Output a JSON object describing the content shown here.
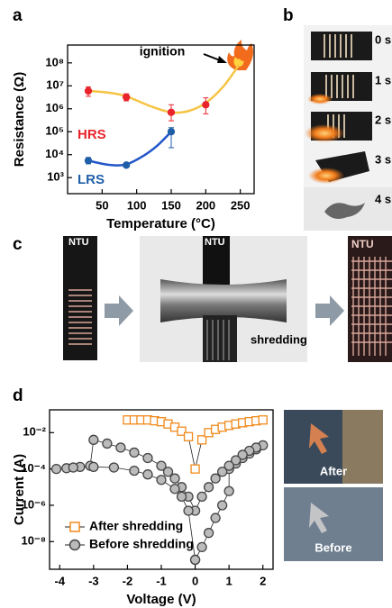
{
  "figure": {
    "panels": [
      "a",
      "b",
      "c",
      "d"
    ],
    "b_times": [
      "0 s",
      "1 s",
      "2 s",
      "3 s",
      "4 s"
    ],
    "c_labels": [
      "NTU",
      "NTU",
      "NTU"
    ],
    "c_caption": "shredding",
    "d_insets": [
      "After",
      "Before"
    ]
  },
  "chart_data": [
    {
      "type": "line",
      "log_y": true,
      "x_label": "Temperature (°C)",
      "y_label": "Resistance (Ω)",
      "annotation": "ignition",
      "xlim": [
        0,
        270
      ],
      "ylim": [
        200,
        600000000
      ],
      "xticks": [
        50,
        100,
        150,
        200,
        250
      ],
      "yticks": [
        {
          "value": 1000,
          "label": "10³"
        },
        {
          "value": 10000,
          "label": "10⁴"
        },
        {
          "value": 100000,
          "label": "10⁵"
        },
        {
          "value": 1000000,
          "label": "10⁶"
        },
        {
          "value": 10000000,
          "label": "10⁷"
        },
        {
          "value": 100000000,
          "label": "10⁸"
        }
      ],
      "series": [
        {
          "name": "HRS",
          "color": "#e8232a",
          "marker": "circle",
          "x": [
            30,
            85,
            150,
            200
          ],
          "values": [
            6000000,
            3200000,
            700000,
            1500000
          ],
          "err_low": [
            3500000,
            2200000,
            300000,
            600000
          ],
          "err_high": [
            9000000,
            4500000,
            1500000,
            3000000
          ],
          "fit": {
            "color": "#f6c445",
            "x": [
              30,
              60,
              85,
              120,
              150,
              175,
              200,
              225,
              248
            ],
            "values": [
              6000000,
              5000000,
              3500000,
              1300000,
              700000,
              800000,
              1800000,
              9000000,
              80000000
            ]
          }
        },
        {
          "name": "LRS",
          "color": "#1f5fa8",
          "marker": "circle",
          "x": [
            30,
            85,
            150
          ],
          "values": [
            5500,
            3500,
            100000
          ],
          "err_low": [
            4000,
            3000,
            20000
          ],
          "err_high": [
            7500,
            4200,
            150000
          ],
          "fit": {
            "color": "#2255c8",
            "x": [
              30,
              60,
              85,
              110,
              130,
              150
            ],
            "values": [
              5500,
              3600,
              3800,
              9000,
              25000,
              100000
            ]
          }
        }
      ]
    },
    {
      "type": "line",
      "log_y": true,
      "x_label": "Voltage (V)",
      "y_label": "Current (A)",
      "legend": "lower left",
      "xlim": [
        -4.3,
        2.3
      ],
      "ylim": [
        3e-10,
        0.18
      ],
      "xticks": [
        -4,
        -3,
        -2,
        -1,
        0,
        1,
        2
      ],
      "yticks": [
        {
          "value": 1e-08,
          "label": "10⁻⁸"
        },
        {
          "value": 1e-06,
          "label": "10⁻⁶"
        },
        {
          "value": 0.0001,
          "label": "10⁻⁴"
        },
        {
          "value": 0.01,
          "label": "10⁻²"
        }
      ],
      "series": [
        {
          "name": "After shredding",
          "color": "#f08a1c",
          "fill": "#ffffff",
          "marker": "square",
          "x": [
            -2,
            -1.8,
            -1.6,
            -1.4,
            -1.2,
            -1,
            -0.8,
            -0.6,
            -0.4,
            -0.2,
            0,
            0.2,
            0.4,
            0.6,
            0.8,
            1,
            1.2,
            1.4,
            1.6,
            1.8,
            2
          ],
          "values": [
            0.05,
            0.05,
            0.05,
            0.05,
            0.045,
            0.04,
            0.03,
            0.02,
            0.012,
            0.006,
            0.0001,
            0.004,
            0.01,
            0.015,
            0.02,
            0.025,
            0.03,
            0.035,
            0.04,
            0.045,
            0.05
          ]
        },
        {
          "name": "Before shredding",
          "color": "#444444",
          "fill": "#bbbbbb",
          "marker": "circle",
          "x": [
            0,
            0.2,
            0.4,
            0.6,
            0.8,
            1,
            1,
            1.2,
            1.4,
            1.6,
            1.8,
            2,
            1.8,
            1.6,
            1.4,
            1.2,
            1,
            0.8,
            0.6,
            0.4,
            0.2,
            0,
            -0.2,
            -0.4,
            -0.6,
            -0.8,
            -1,
            -1.4,
            -1.8,
            -2.2,
            -2.6,
            -3,
            -3.1,
            -3.4,
            -3.8,
            -4.1,
            -3.6,
            -3,
            -2.4,
            -1.8,
            -1.4,
            -1,
            -0.6,
            -0.4,
            -0.2,
            0
          ],
          "values": [
            1e-09,
            5e-09,
            3e-08,
            2e-07,
            1e-06,
            6e-06,
            0.0001,
            0.0002,
            0.0004,
            0.0007,
            0.0012,
            0.002,
            0.0015,
            0.001,
            0.0006,
            0.0003,
            0.00015,
            7e-05,
            3e-05,
            1e-05,
            3e-06,
            5e-07,
            3e-06,
            1e-05,
            3e-05,
            7e-05,
            0.00015,
            0.0004,
            0.0008,
            0.0015,
            0.0025,
            0.004,
            0.00015,
            0.00013,
            0.00011,
            0.0001,
            0.00012,
            0.00013,
            0.00012,
            8e-05,
            5e-05,
            2.5e-05,
            8e-06,
            3e-06,
            5e-07,
            1e-09
          ]
        }
      ]
    }
  ]
}
